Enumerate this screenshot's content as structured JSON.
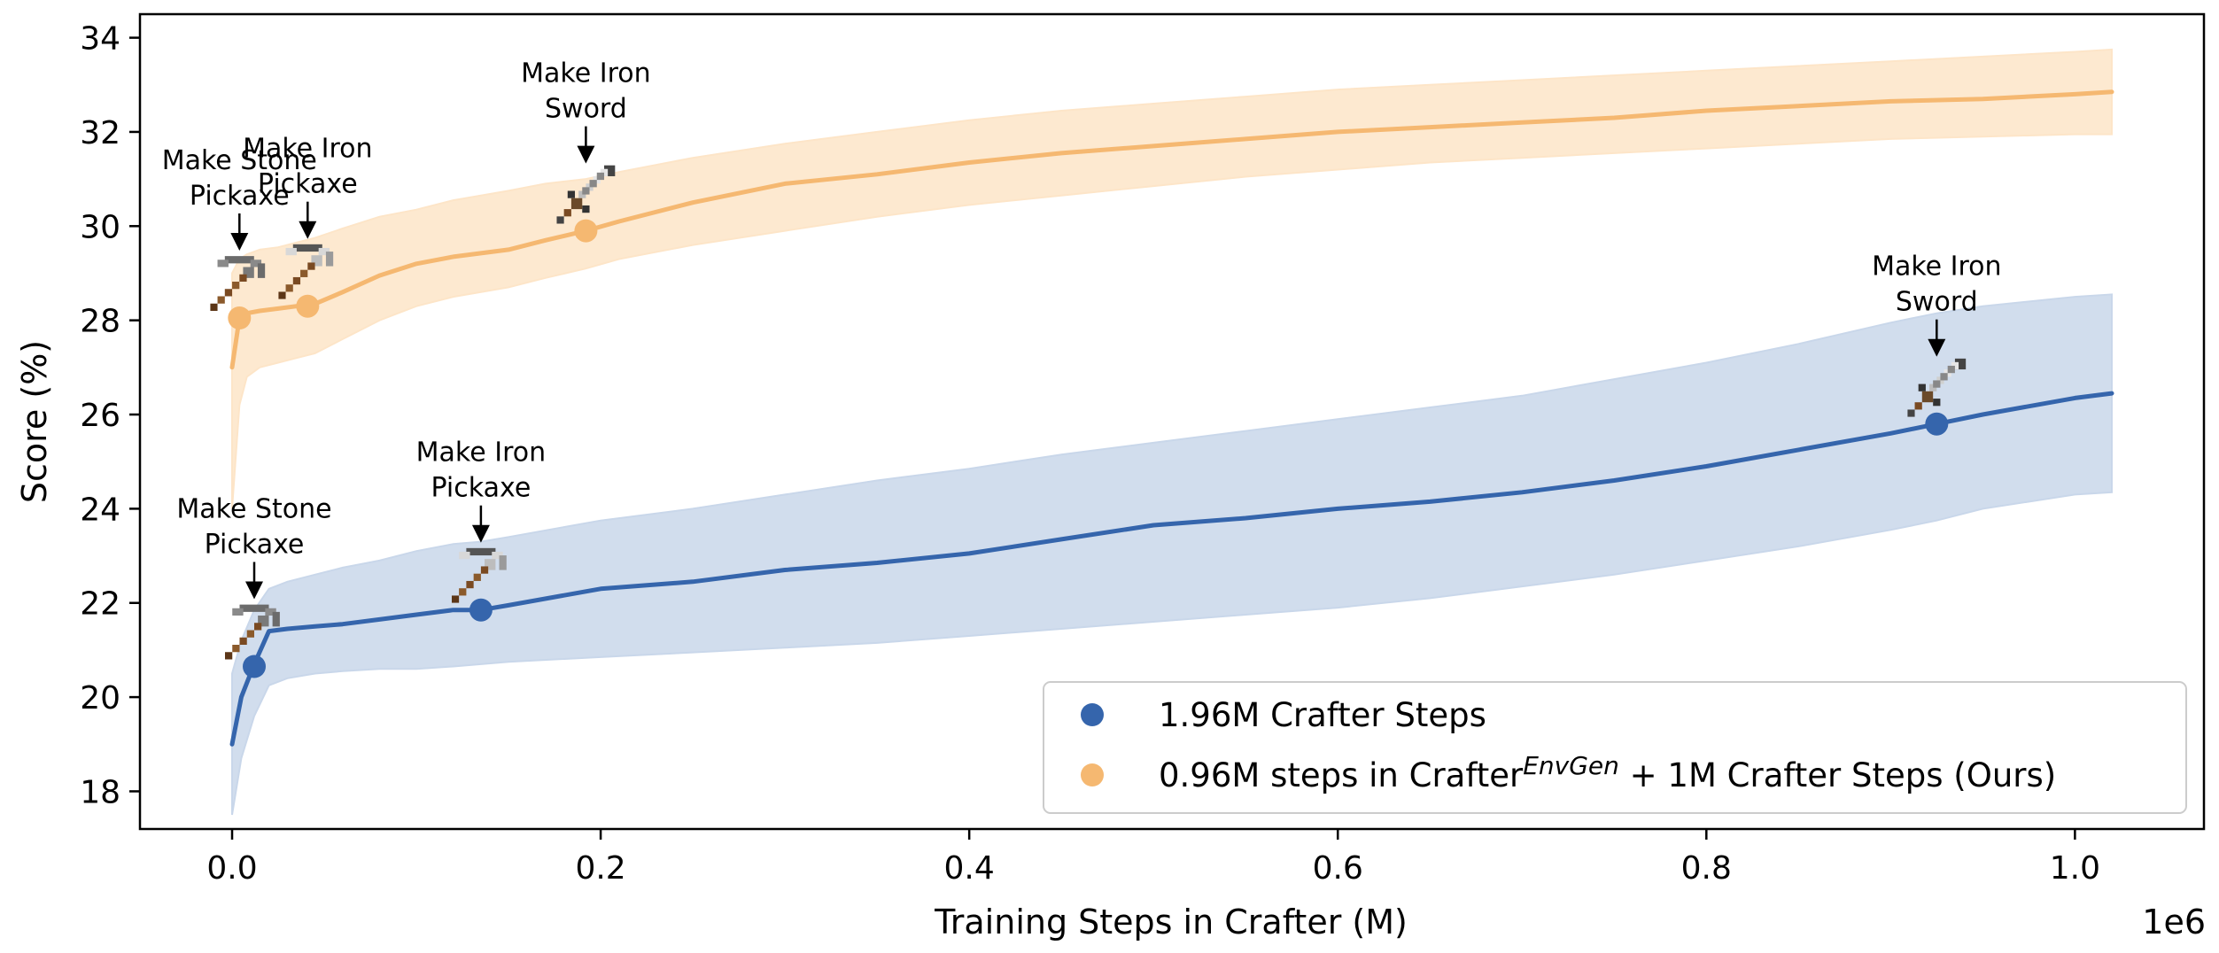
{
  "chart_data": {
    "type": "line",
    "xlabel": "Training Steps in Crafter (M)",
    "ylabel": "Score (%)",
    "x_offset_label": "1e6",
    "xlim": [
      -0.05,
      1.07
    ],
    "ylim": [
      17.2,
      34.5
    ],
    "xticks": [
      0.0,
      0.2,
      0.4,
      0.6,
      0.8,
      1.0
    ],
    "xtick_labels": [
      "0.0",
      "0.2",
      "0.4",
      "0.6",
      "0.8",
      "1.0"
    ],
    "yticks": [
      18,
      20,
      22,
      24,
      26,
      28,
      30,
      32,
      34
    ],
    "ytick_labels": [
      "18",
      "20",
      "22",
      "24",
      "26",
      "28",
      "30",
      "32",
      "34"
    ],
    "grid": false,
    "legend_position": "lower-right",
    "series": [
      {
        "name": "1.96M Crafter Steps",
        "color": "#3565ac",
        "band_color": "#c9d7ea",
        "x": [
          0.0,
          0.005,
          0.012,
          0.02,
          0.03,
          0.045,
          0.06,
          0.08,
          0.1,
          0.12,
          0.135,
          0.15,
          0.2,
          0.25,
          0.3,
          0.35,
          0.4,
          0.45,
          0.5,
          0.55,
          0.6,
          0.65,
          0.7,
          0.75,
          0.8,
          0.85,
          0.9,
          0.925,
          0.95,
          1.0,
          1.02
        ],
        "y": [
          19.0,
          20.0,
          20.7,
          21.4,
          21.45,
          21.5,
          21.55,
          21.65,
          21.75,
          21.85,
          21.85,
          21.95,
          22.3,
          22.45,
          22.7,
          22.85,
          23.05,
          23.35,
          23.65,
          23.8,
          24.0,
          24.15,
          24.35,
          24.6,
          24.9,
          25.25,
          25.6,
          25.8,
          26.0,
          26.35,
          26.45
        ],
        "lower": [
          17.5,
          18.7,
          19.6,
          20.25,
          20.4,
          20.5,
          20.55,
          20.6,
          20.6,
          20.65,
          20.7,
          20.75,
          20.85,
          20.95,
          21.05,
          21.15,
          21.3,
          21.45,
          21.6,
          21.75,
          21.9,
          22.1,
          22.35,
          22.6,
          22.9,
          23.2,
          23.55,
          23.75,
          24.0,
          24.3,
          24.35
        ],
        "upper": [
          20.5,
          21.2,
          21.85,
          22.3,
          22.45,
          22.6,
          22.75,
          22.9,
          23.1,
          23.25,
          23.3,
          23.4,
          23.75,
          24.0,
          24.3,
          24.6,
          24.85,
          25.15,
          25.4,
          25.65,
          25.9,
          26.15,
          26.4,
          26.75,
          27.1,
          27.5,
          27.95,
          28.15,
          28.3,
          28.5,
          28.55
        ]
      },
      {
        "name": "0.96M steps in Crafter",
        "name_superscript": "EnvGen",
        "name_suffix": " + 1M Crafter Steps (Ours)",
        "color": "#f5b871",
        "band_color": "#fde5c8",
        "x": [
          0.0,
          0.004,
          0.008,
          0.015,
          0.025,
          0.035,
          0.045,
          0.06,
          0.08,
          0.1,
          0.12,
          0.15,
          0.17,
          0.192,
          0.21,
          0.25,
          0.3,
          0.35,
          0.4,
          0.45,
          0.5,
          0.55,
          0.6,
          0.65,
          0.7,
          0.75,
          0.8,
          0.85,
          0.9,
          0.95,
          1.0,
          1.02
        ],
        "y": [
          27.0,
          28.05,
          28.15,
          28.2,
          28.25,
          28.3,
          28.35,
          28.6,
          28.95,
          29.2,
          29.35,
          29.5,
          29.7,
          29.9,
          30.1,
          30.5,
          30.9,
          31.1,
          31.35,
          31.55,
          31.7,
          31.85,
          32.0,
          32.1,
          32.2,
          32.3,
          32.45,
          32.55,
          32.65,
          32.7,
          32.8,
          32.85
        ],
        "lower": [
          24.0,
          26.2,
          26.8,
          27.0,
          27.1,
          27.2,
          27.3,
          27.6,
          28.0,
          28.3,
          28.5,
          28.7,
          28.9,
          29.1,
          29.3,
          29.6,
          29.9,
          30.2,
          30.45,
          30.65,
          30.85,
          31.05,
          31.2,
          31.35,
          31.45,
          31.55,
          31.65,
          31.75,
          31.85,
          31.9,
          31.95,
          31.95
        ],
        "upper": [
          29.0,
          29.3,
          29.4,
          29.5,
          29.55,
          29.65,
          29.75,
          29.95,
          30.2,
          30.35,
          30.55,
          30.75,
          30.9,
          31.0,
          31.15,
          31.45,
          31.75,
          32.0,
          32.25,
          32.45,
          32.6,
          32.75,
          32.9,
          33.0,
          33.1,
          33.2,
          33.3,
          33.4,
          33.5,
          33.6,
          33.7,
          33.75
        ]
      }
    ],
    "annotations": [
      {
        "series": 0,
        "x": 0.012,
        "y": 20.65,
        "lines": [
          "Make Stone",
          "Pickaxe"
        ],
        "icon": "pickaxe-stone-icon"
      },
      {
        "series": 0,
        "x": 0.135,
        "y": 21.85,
        "lines": [
          "Make Iron",
          "Pickaxe"
        ],
        "icon": "pickaxe-iron-icon"
      },
      {
        "series": 0,
        "x": 0.925,
        "y": 25.8,
        "lines": [
          "Make Iron",
          "Sword"
        ],
        "icon": "sword-iron-icon"
      },
      {
        "series": 1,
        "x": 0.004,
        "y": 28.05,
        "lines": [
          "Make Stone",
          "Pickaxe"
        ],
        "icon": "pickaxe-stone-icon"
      },
      {
        "series": 1,
        "x": 0.041,
        "y": 28.3,
        "lines": [
          "Make Iron",
          "Pickaxe"
        ],
        "icon": "pickaxe-iron-icon"
      },
      {
        "series": 1,
        "x": 0.192,
        "y": 29.9,
        "lines": [
          "Make Iron",
          "Sword"
        ],
        "icon": "sword-iron-icon"
      }
    ]
  }
}
